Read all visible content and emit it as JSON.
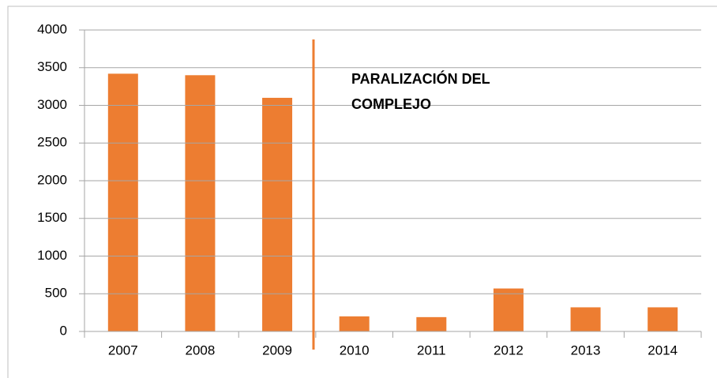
{
  "chart_data": {
    "type": "bar",
    "categories": [
      "2007",
      "2008",
      "2009",
      "2010",
      "2011",
      "2012",
      "2013",
      "2014"
    ],
    "values": [
      3420,
      3400,
      3100,
      200,
      190,
      570,
      320,
      320
    ],
    "color": "#ed7d31",
    "ylim": [
      0,
      4000
    ],
    "yticks": [
      0,
      500,
      1000,
      1500,
      2000,
      2500,
      3000,
      3500,
      4000
    ],
    "grid": true,
    "annotation": [
      "PARALIZACIÓN DEL",
      "COMPLEJO"
    ]
  }
}
